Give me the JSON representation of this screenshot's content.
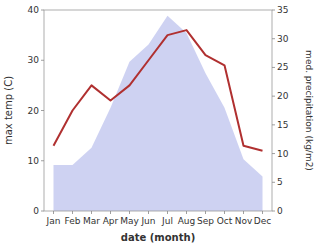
{
  "chart_data": {
    "type": "line",
    "xlabel": "date (month)",
    "ylabel": "max temp (C)",
    "y2label": "med. precipitation (kg/m2)",
    "categories": [
      "Jan",
      "Feb",
      "Mar",
      "Apr",
      "May",
      "Jun",
      "Jul",
      "Aug",
      "Sep",
      "Oct",
      "Nov",
      "Dec"
    ],
    "series": [
      {
        "type": "area",
        "axis": "y2",
        "color": "#c5caf0",
        "values": [
          8,
          8,
          11,
          18,
          26,
          29,
          34,
          31,
          24,
          18,
          9,
          6
        ]
      },
      {
        "type": "line",
        "color": "#b03030",
        "values": [
          13,
          20,
          25,
          22,
          25,
          30,
          35,
          36,
          31,
          29,
          13,
          12
        ]
      }
    ],
    "ylim": [
      0,
      40
    ],
    "yticks": [
      0,
      10,
      20,
      30,
      40
    ],
    "y2lim": [
      0,
      35
    ],
    "y2ticks": [
      0,
      5,
      10,
      15,
      20,
      25,
      30,
      35
    ],
    "grid": false
  }
}
